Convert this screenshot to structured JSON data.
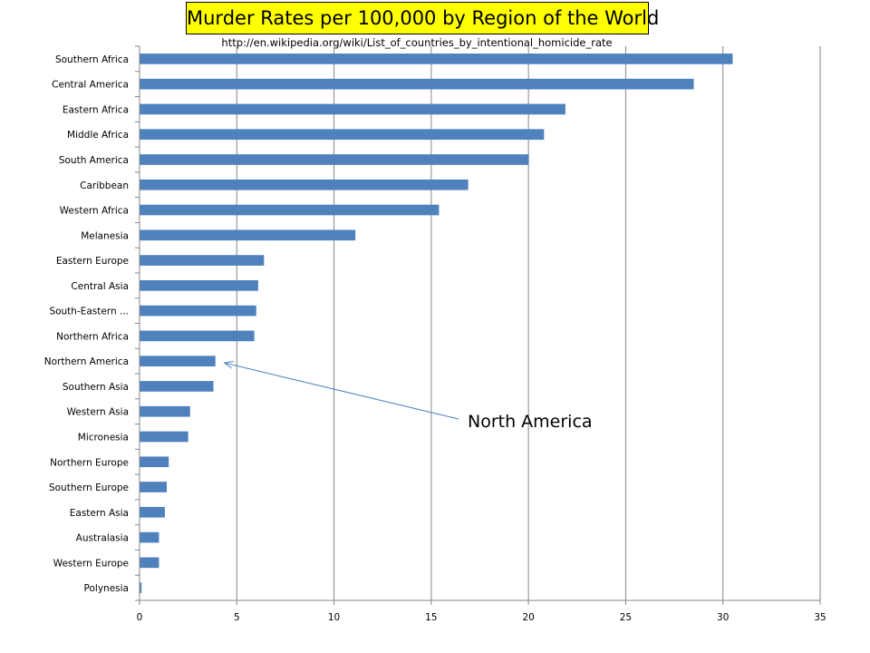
{
  "chart_data": {
    "type": "bar",
    "orientation": "horizontal",
    "title": "Murder Rates per 100,000 by Region of the World",
    "subtitle": "http://en.wikipedia.org/wiki/List_of_countries_by_intentional_homicide_rate",
    "categories": [
      "Southern Africa",
      "Central America",
      "Eastern Africa",
      "Middle Africa",
      "South America",
      "Caribbean",
      "Western Africa",
      "Melanesia",
      "Eastern Europe",
      "Central Asia",
      "South-Eastern ...",
      "Northern Africa",
      "Northern America",
      "Southern Asia",
      "Western Asia",
      "Micronesia",
      "Northern Europe",
      "Southern Europe",
      "Eastern Asia",
      "Australasia",
      "Western Europe",
      "Polynesia"
    ],
    "values": [
      30.5,
      28.5,
      21.9,
      20.8,
      20.0,
      16.9,
      15.4,
      11.1,
      6.4,
      6.1,
      6.0,
      5.9,
      3.9,
      3.8,
      2.6,
      2.5,
      1.5,
      1.4,
      1.3,
      1.0,
      1.0,
      0.1
    ],
    "xlim": [
      0,
      35
    ],
    "x_ticks": [
      "0",
      "5",
      "10",
      "15",
      "20",
      "25",
      "30",
      "35"
    ],
    "grid": true,
    "legend": "none",
    "bar_color": "#4f81bd",
    "annotation": {
      "text": "North America",
      "target_category": "Northern America"
    }
  }
}
